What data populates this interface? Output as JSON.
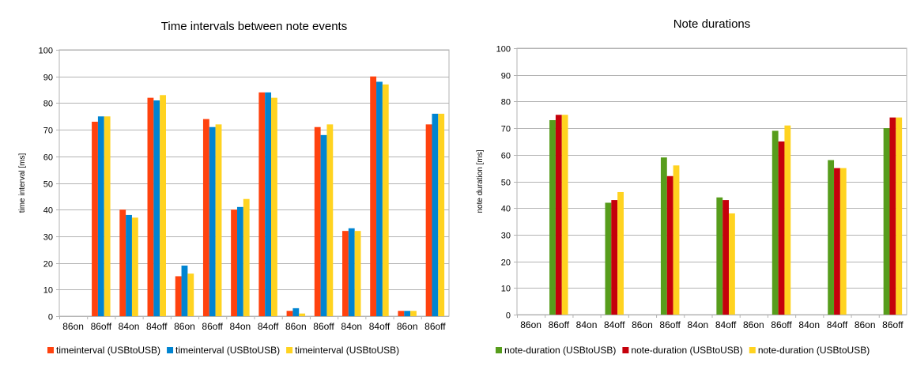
{
  "chart_data": [
    {
      "type": "bar",
      "title": "Time intervals between note events",
      "xlabel": "",
      "ylabel": "time interval [ms]",
      "ylim": [
        0,
        100
      ],
      "yticks": [
        0,
        10,
        20,
        30,
        40,
        50,
        60,
        70,
        80,
        90,
        100
      ],
      "grid": true,
      "legend_position": "bottom",
      "categories": [
        "86on",
        "86off",
        "84on",
        "84off",
        "86on",
        "86off",
        "84on",
        "84off",
        "86on",
        "86off",
        "84on",
        "84off",
        "86on",
        "86off"
      ],
      "series": [
        {
          "name": "timeinterval (USBtoUSB)",
          "color": "#ff420e",
          "values": [
            0,
            73,
            40,
            82,
            15,
            74,
            40,
            84,
            2,
            71,
            32,
            90,
            2,
            72
          ]
        },
        {
          "name": "timeinterval (USBtoUSB)",
          "color": "#0084d1",
          "values": [
            0,
            75,
            38,
            81,
            19,
            71,
            41,
            84,
            3,
            68,
            33,
            88,
            2,
            76
          ]
        },
        {
          "name": "timeinterval (USBtoUSB)",
          "color": "#ffd320",
          "values": [
            0,
            75,
            37,
            83,
            16,
            72,
            44,
            82,
            1,
            72,
            32,
            87,
            2,
            76
          ]
        }
      ]
    },
    {
      "type": "bar",
      "title": "Note durations",
      "xlabel": "",
      "ylabel": "note duration [ms]",
      "ylim": [
        0,
        100
      ],
      "yticks": [
        0,
        10,
        20,
        30,
        40,
        50,
        60,
        70,
        80,
        90,
        100
      ],
      "grid": true,
      "legend_position": "bottom",
      "categories": [
        "86on",
        "86off",
        "84on",
        "84off",
        "86on",
        "86off",
        "84on",
        "84off",
        "86on",
        "86off",
        "84on",
        "84off",
        "86on",
        "86off"
      ],
      "series": [
        {
          "name": "note-duration (USBtoUSB)",
          "color": "#579d1c",
          "values": [
            0,
            73,
            0,
            42,
            0,
            59,
            0,
            44,
            0,
            69,
            0,
            58,
            0,
            70
          ]
        },
        {
          "name": "note-duration (USBtoUSB)",
          "color": "#c5000b",
          "values": [
            0,
            75,
            0,
            43,
            0,
            52,
            0,
            43,
            0,
            65,
            0,
            55,
            0,
            74
          ]
        },
        {
          "name": "note-duration (USBtoUSB)",
          "color": "#ffd320",
          "values": [
            0,
            75,
            0,
            46,
            0,
            56,
            0,
            38,
            0,
            71,
            0,
            55,
            0,
            74
          ]
        }
      ]
    }
  ]
}
